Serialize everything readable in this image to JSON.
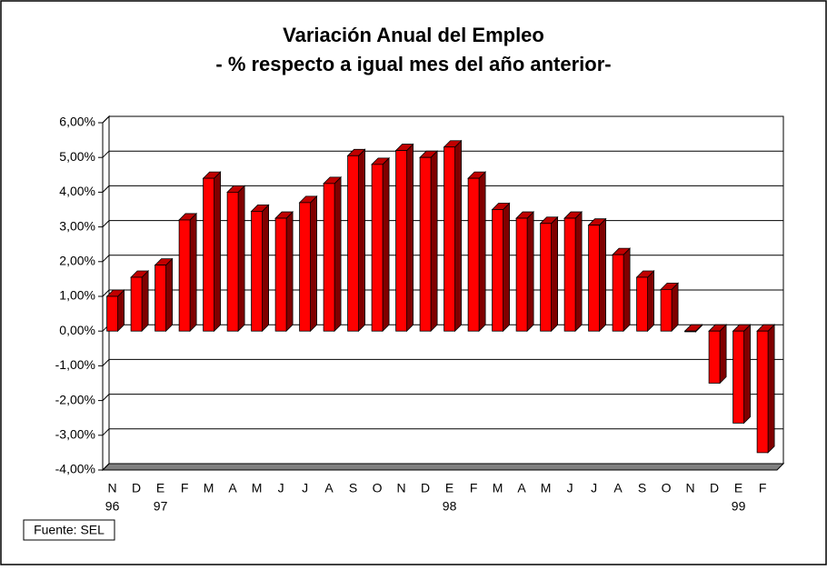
{
  "chart_data": {
    "type": "bar",
    "title": "Variación Anual del Empleo",
    "subtitle": "- % respecto a igual mes del año anterior-",
    "categories": [
      "N",
      "D",
      "E",
      "F",
      "M",
      "A",
      "M",
      "J",
      "J",
      "A",
      "S",
      "O",
      "N",
      "D",
      "E",
      "F",
      "M",
      "A",
      "M",
      "J",
      "J",
      "A",
      "S",
      "O",
      "N",
      "D",
      "E",
      "F"
    ],
    "category_years": [
      "96",
      null,
      "97",
      null,
      null,
      null,
      null,
      null,
      null,
      null,
      null,
      null,
      null,
      null,
      "98",
      null,
      null,
      null,
      null,
      null,
      null,
      null,
      null,
      null,
      null,
      null,
      "99",
      null
    ],
    "values": [
      1.0,
      1.55,
      1.9,
      3.2,
      4.4,
      4.0,
      3.45,
      3.25,
      3.7,
      4.25,
      5.05,
      4.8,
      5.2,
      5.0,
      5.3,
      4.4,
      3.5,
      3.25,
      3.1,
      3.25,
      3.05,
      2.2,
      1.55,
      1.2,
      -0.02,
      -1.5,
      -2.65,
      -3.5
    ],
    "color": "#ff0000",
    "ylim": [
      -4,
      6
    ],
    "yticks": [
      {
        "value": -4,
        "label": "-4,00%"
      },
      {
        "value": -3,
        "label": "-3,00%"
      },
      {
        "value": -2,
        "label": "-2,00%"
      },
      {
        "value": -1,
        "label": "-1,00%"
      },
      {
        "value": 0,
        "label": "0,00%"
      },
      {
        "value": 1,
        "label": "1,00%"
      },
      {
        "value": 2,
        "label": "2,00%"
      },
      {
        "value": 3,
        "label": "3,00%"
      },
      {
        "value": 4,
        "label": "4,00%"
      },
      {
        "value": 5,
        "label": "5,00%"
      },
      {
        "value": 6,
        "label": "6,00%"
      }
    ],
    "grid": true,
    "source": "Fuente: SEL"
  }
}
